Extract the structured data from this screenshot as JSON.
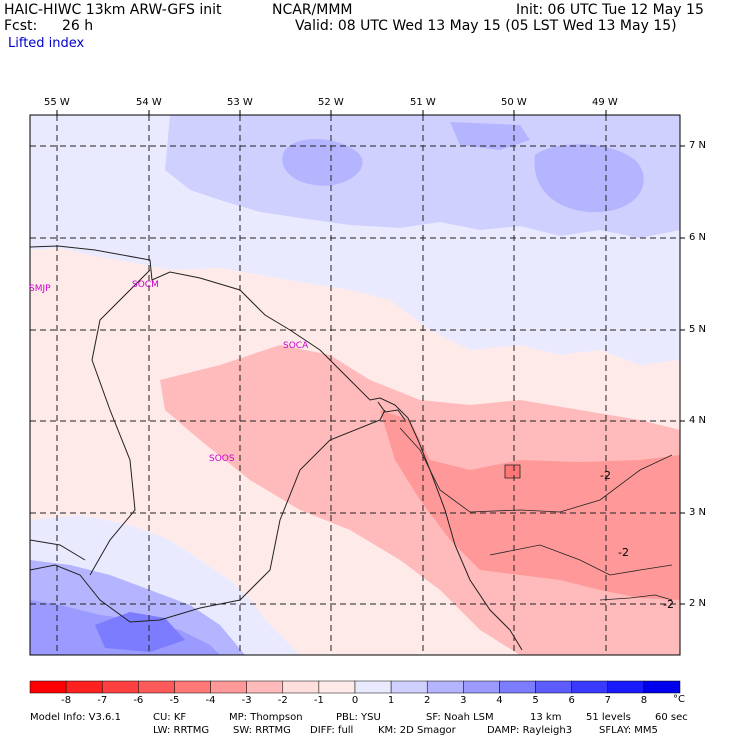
{
  "header": {
    "model_title": "HAIC-HIWC 13km ARW-GFS init",
    "org": "NCAR/MMM",
    "init": "Init: 06 UTC Tue 12 May 15",
    "fcst_label": "Fcst:",
    "fcst_value": "26 h",
    "valid": "Valid: 08 UTC Wed 13 May 15 (05 LST Wed 13 May 15)",
    "field": "Lifted index"
  },
  "map": {
    "longitudes": [
      "55 W",
      "54 W",
      "53 W",
      "52 W",
      "51 W",
      "50 W",
      "49 W"
    ],
    "latitudes": [
      "7 N",
      "6 N",
      "5 N",
      "4 N",
      "3 N",
      "2 N"
    ],
    "stations": [
      "SMJP",
      "SOCM",
      "SOCA",
      "SOOS"
    ],
    "contour_labels": [
      "-2",
      "-2",
      "-2"
    ]
  },
  "colorbar": {
    "ticks": [
      "-8",
      "-7",
      "-6",
      "-5",
      "-4",
      "-3",
      "-2",
      "-1",
      "0",
      "1",
      "2",
      "3",
      "4",
      "5",
      "6",
      "7",
      "8"
    ],
    "unit": "°C",
    "colors": [
      "#ff0000",
      "#ff2020",
      "#ff4040",
      "#ff5a5a",
      "#ff7777",
      "#ff9999",
      "#ffbbbb",
      "#ffdede",
      "#ffeaea",
      "#eaeaff",
      "#d0d0ff",
      "#b4b4ff",
      "#9a9aff",
      "#7c7cff",
      "#5c5cff",
      "#3a3aff",
      "#1a1aff",
      "#0000ee"
    ]
  },
  "footer": {
    "line1": {
      "model_info": "Model Info: V3.6.1",
      "cu": "CU: KF",
      "mp": "MP: Thompson",
      "pbl": "PBL: YSU",
      "sf": "SF: Noah LSM",
      "res": "13 km",
      "levels": "51 levels",
      "dt": "60 sec"
    },
    "line2": {
      "lw": "LW: RRTMG",
      "sw": "SW: RRTMG",
      "diff": "DIFF: full",
      "km": "KM: 2D Smagor",
      "damp": "DAMP: Rayleigh3",
      "sflay": "SFLAY: MM5"
    }
  }
}
